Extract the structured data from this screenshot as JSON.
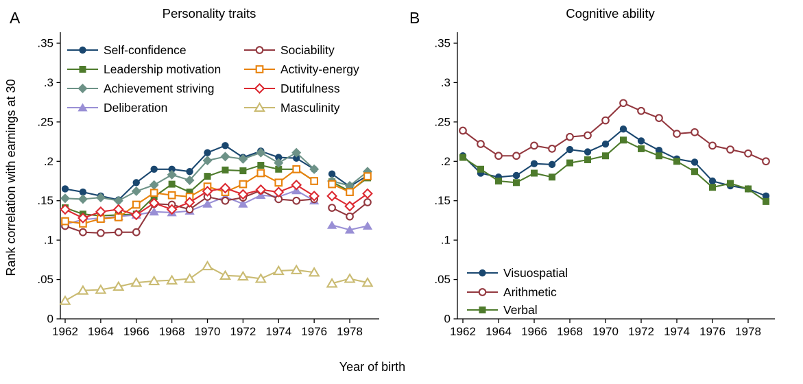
{
  "chart_data": [
    {
      "type": "line",
      "panel_label": "A",
      "title": "Personality traits",
      "ylabel": "Rank correlation with earnings at 30",
      "xlabel": "Year of birth",
      "x": [
        1962,
        1963,
        1964,
        1965,
        1966,
        1967,
        1968,
        1969,
        1970,
        1971,
        1972,
        1973,
        1974,
        1975,
        1976,
        1977,
        1978,
        1979
      ],
      "xtick_labels": [
        "1962",
        "1964",
        "1966",
        "1968",
        "1970",
        "1972",
        "1974",
        "1976",
        "1978"
      ],
      "ytick_values": [
        0,
        0.05,
        0.1,
        0.15,
        0.2,
        0.25,
        0.3,
        0.35
      ],
      "ytick_labels": [
        "0",
        ".05",
        ".1",
        ".15",
        ".2",
        ".25",
        ".3",
        ".35"
      ],
      "ylim": [
        0,
        0.365
      ],
      "grid": false,
      "line_gap_between_years": [
        1976,
        1977
      ],
      "legend": {
        "position": "top-left-inside",
        "columns": 2,
        "items_per_column": 4
      },
      "series": [
        {
          "name": "Self-confidence",
          "marker": "circle-filled",
          "color": "#1a476f",
          "values": [
            0.165,
            0.161,
            0.156,
            0.151,
            0.173,
            0.19,
            0.19,
            0.187,
            0.211,
            0.22,
            0.205,
            0.213,
            0.205,
            0.204,
            0.19,
            0.184,
            0.168,
            0.182
          ]
        },
        {
          "name": "Leadership motivation",
          "marker": "square-filled",
          "color": "#4e7b2c",
          "values": [
            0.141,
            0.133,
            0.131,
            0.132,
            0.133,
            0.155,
            0.171,
            0.161,
            0.181,
            0.189,
            0.188,
            0.195,
            0.19,
            0.19,
            0.175,
            0.174,
            0.162,
            0.179
          ]
        },
        {
          "name": "Achievement striving",
          "marker": "diamond-filled",
          "color": "#6d9287",
          "values": [
            0.153,
            0.152,
            0.154,
            0.15,
            0.162,
            0.17,
            0.183,
            0.176,
            0.201,
            0.206,
            0.203,
            0.211,
            0.198,
            0.211,
            0.19,
            0.175,
            0.169,
            0.187
          ]
        },
        {
          "name": "Deliberation",
          "marker": "triangle-filled",
          "color": "#998fd5",
          "values": [
            0.12,
            0.126,
            0.128,
            0.13,
            0.132,
            0.136,
            0.135,
            0.137,
            0.146,
            0.155,
            0.146,
            0.157,
            0.155,
            0.163,
            0.15,
            0.119,
            0.113,
            0.118
          ]
        },
        {
          "name": "Sociability",
          "marker": "circle-open",
          "color": "#93383f",
          "values": [
            0.118,
            0.11,
            0.109,
            0.11,
            0.11,
            0.146,
            0.145,
            0.139,
            0.155,
            0.15,
            0.154,
            0.163,
            0.152,
            0.15,
            0.152,
            0.141,
            0.13,
            0.148
          ]
        },
        {
          "name": "Activity-energy",
          "marker": "square-open",
          "color": "#e8820c",
          "values": [
            0.124,
            0.121,
            0.127,
            0.129,
            0.145,
            0.16,
            0.157,
            0.155,
            0.168,
            0.161,
            0.171,
            0.185,
            0.173,
            0.19,
            0.175,
            0.171,
            0.161,
            0.181
          ]
        },
        {
          "name": "Dutifulness",
          "marker": "diamond-open",
          "color": "#dc2a32",
          "values": [
            0.139,
            0.128,
            0.136,
            0.139,
            0.132,
            0.147,
            0.139,
            0.148,
            0.162,
            0.166,
            0.158,
            0.164,
            0.161,
            0.17,
            0.156,
            0.156,
            0.143,
            0.159
          ]
        },
        {
          "name": "Masculinity",
          "marker": "triangle-open",
          "color": "#cabb72",
          "values": [
            0.023,
            0.036,
            0.037,
            0.041,
            0.046,
            0.048,
            0.049,
            0.051,
            0.067,
            0.055,
            0.054,
            0.051,
            0.061,
            0.062,
            0.059,
            0.045,
            0.051,
            0.046
          ]
        }
      ]
    },
    {
      "type": "line",
      "panel_label": "B",
      "title": "Cognitive ability",
      "ylabel": "Rank correlation with earnings at 30",
      "xlabel": "Year of birth",
      "x": [
        1962,
        1963,
        1964,
        1965,
        1966,
        1967,
        1968,
        1969,
        1970,
        1971,
        1972,
        1973,
        1974,
        1975,
        1976,
        1977,
        1978,
        1979
      ],
      "xtick_labels": [
        "1962",
        "1964",
        "1966",
        "1968",
        "1970",
        "1972",
        "1974",
        "1976",
        "1978"
      ],
      "ytick_values": [
        0,
        0.05,
        0.1,
        0.15,
        0.2,
        0.25,
        0.3,
        0.35
      ],
      "ytick_labels": [
        "0",
        ".05",
        ".1",
        ".15",
        ".2",
        ".25",
        ".3",
        ".35"
      ],
      "ylim": [
        0,
        0.365
      ],
      "grid": false,
      "line_gap_between_years": null,
      "legend": {
        "position": "bottom-left-inside",
        "columns": 1,
        "items_per_column": 3
      },
      "series": [
        {
          "name": "Visuospatial",
          "marker": "circle-filled",
          "color": "#1a476f",
          "values": [
            0.207,
            0.185,
            0.18,
            0.182,
            0.197,
            0.196,
            0.215,
            0.212,
            0.222,
            0.241,
            0.226,
            0.214,
            0.203,
            0.199,
            0.175,
            0.169,
            0.165,
            0.156
          ]
        },
        {
          "name": "Arithmetic",
          "marker": "circle-open",
          "color": "#93383f",
          "values": [
            0.239,
            0.222,
            0.207,
            0.207,
            0.22,
            0.216,
            0.231,
            0.233,
            0.252,
            0.274,
            0.264,
            0.255,
            0.235,
            0.237,
            0.22,
            0.215,
            0.21,
            0.2
          ]
        },
        {
          "name": "Verbal",
          "marker": "square-filled",
          "color": "#4e7b2c",
          "values": [
            0.205,
            0.19,
            0.175,
            0.173,
            0.185,
            0.18,
            0.198,
            0.202,
            0.207,
            0.227,
            0.216,
            0.207,
            0.2,
            0.187,
            0.167,
            0.172,
            0.165,
            0.149
          ]
        }
      ]
    }
  ]
}
